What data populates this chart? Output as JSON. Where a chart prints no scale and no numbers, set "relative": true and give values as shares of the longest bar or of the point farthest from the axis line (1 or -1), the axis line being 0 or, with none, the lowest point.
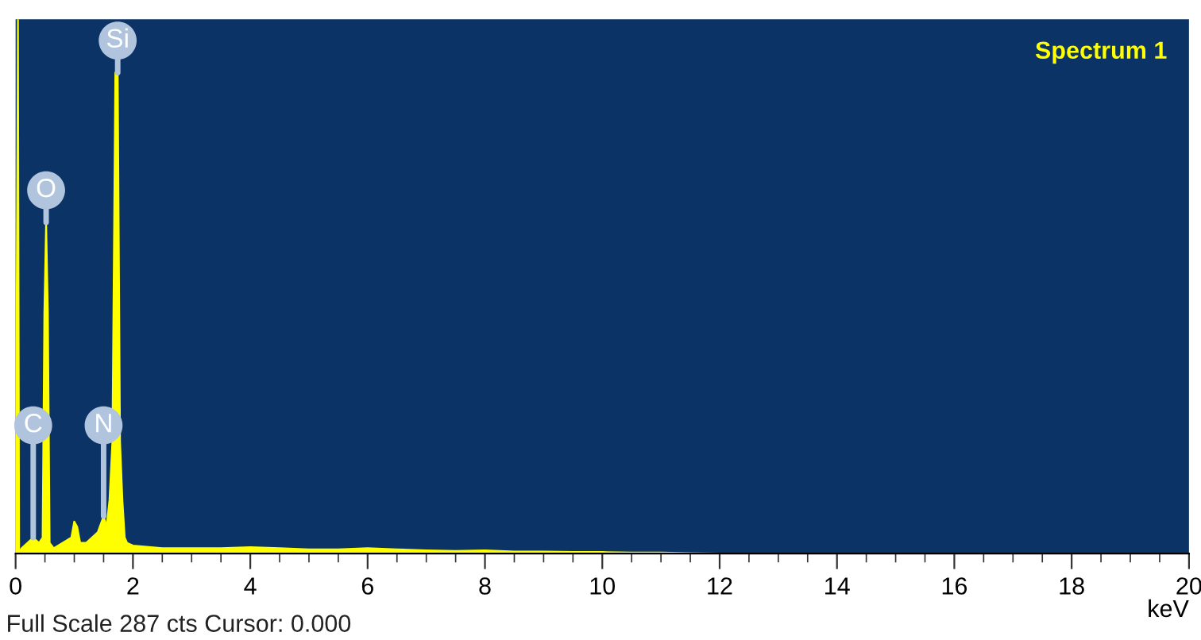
{
  "chart_data": {
    "type": "area",
    "relative": true,
    "xlabel": "keV",
    "x": [
      0,
      0.04,
      0.06,
      0.1,
      0.2,
      0.3,
      0.4,
      0.46,
      0.49,
      0.52,
      0.55,
      0.58,
      0.65,
      0.8,
      0.95,
      1.0,
      1.05,
      1.1,
      1.2,
      1.3,
      1.4,
      1.5,
      1.55,
      1.6,
      1.65,
      1.7,
      1.74,
      1.78,
      1.82,
      1.86,
      1.9,
      2.0,
      2.5,
      3.0,
      3.5,
      4.0,
      4.5,
      5.0,
      5.5,
      6.0,
      6.5,
      7.0,
      7.5,
      8.0,
      8.5,
      9.0,
      9.5,
      10.0,
      10.5,
      11.0,
      11.5,
      12.0,
      14.0,
      16.0,
      18.0,
      20.0
    ],
    "series": [
      {
        "name": "Spectrum 1",
        "color": "#ffff00",
        "values": [
          0,
          1,
          0,
          0.01,
          0.02,
          0.03,
          0.02,
          0.03,
          0.45,
          0.62,
          0.45,
          0.02,
          0.01,
          0.02,
          0.03,
          0.06,
          0.05,
          0.02,
          0.02,
          0.03,
          0.04,
          0.07,
          0.05,
          0.1,
          0.21,
          0.9,
          0.9,
          0.21,
          0.1,
          0.03,
          0.02,
          0.015,
          0.01,
          0.01,
          0.01,
          0.012,
          0.01,
          0.008,
          0.008,
          0.01,
          0.008,
          0.006,
          0.005,
          0.006,
          0.004,
          0.004,
          0.003,
          0.003,
          0.002,
          0.002,
          0.001,
          0,
          0,
          0,
          0,
          0
        ]
      }
    ],
    "xlim": [
      0,
      20
    ],
    "xticks": [
      {
        "value": 0,
        "label": "0"
      },
      2,
      4,
      6,
      8,
      10,
      12,
      14,
      16,
      18,
      20
    ],
    "legend": "top right",
    "annotations": [
      {
        "text": "Si",
        "x": 1.74,
        "y": 0.9
      },
      {
        "text": "O",
        "x": 0.52,
        "y": 0.62
      },
      {
        "text": "N",
        "x": 1.5,
        "y": 0.07
      },
      {
        "text": "C",
        "x": 0.3,
        "y": 0.03
      },
      "Full Scale 287 cts Cursor: 0.000"
    ]
  }
}
